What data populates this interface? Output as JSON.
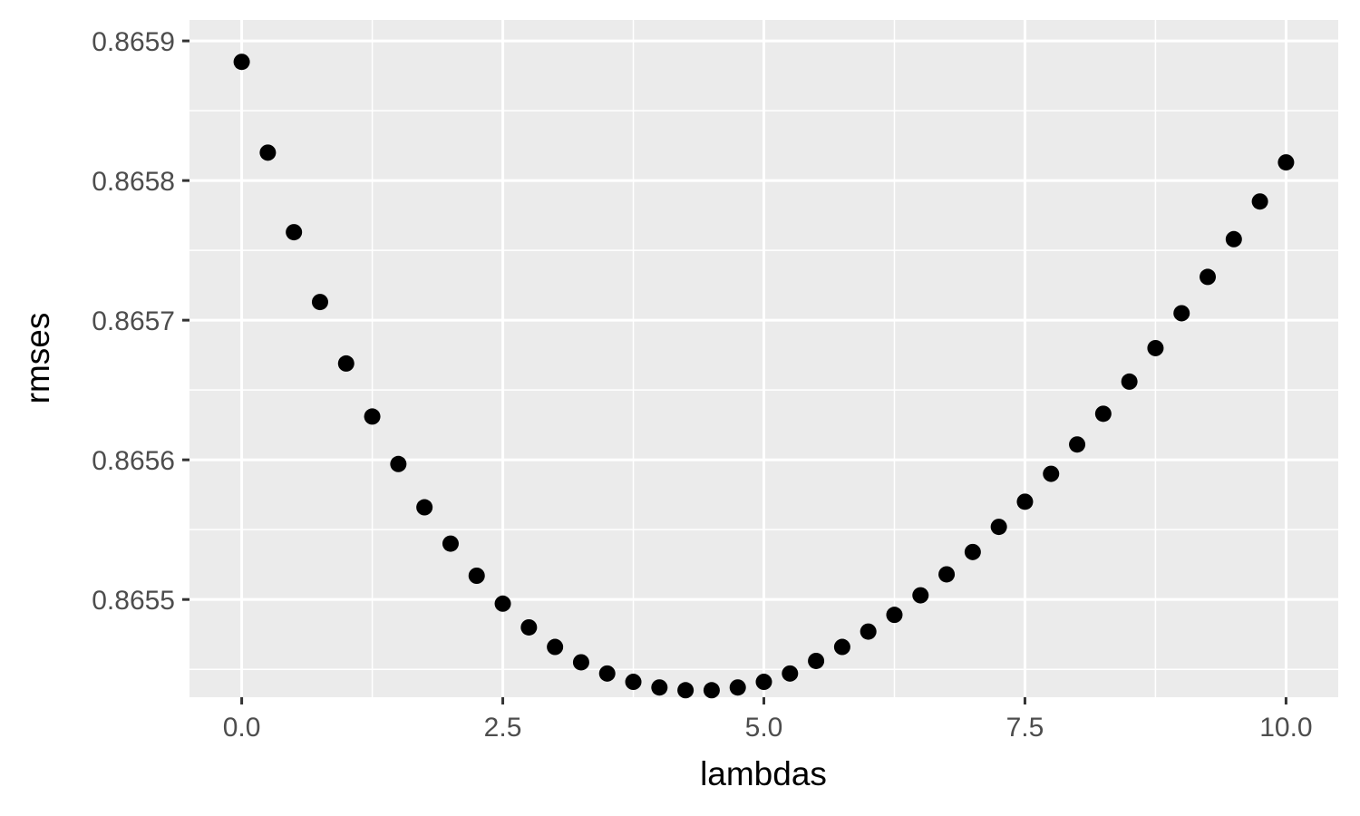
{
  "chart_data": {
    "type": "scatter",
    "xlabel": "lambdas",
    "ylabel": "rmses",
    "xlim": [
      -0.5,
      10.5
    ],
    "ylim": [
      0.86543,
      0.865915
    ],
    "x_ticks": [
      0.0,
      2.5,
      5.0,
      7.5,
      10.0
    ],
    "x_tick_labels": [
      "0.0",
      "2.5",
      "5.0",
      "7.5",
      "10.0"
    ],
    "y_ticks": [
      0.8655,
      0.8656,
      0.8657,
      0.8658,
      0.8659
    ],
    "y_tick_labels": [
      "0.8655",
      "0.8656",
      "0.8657",
      "0.8658",
      "0.8659"
    ],
    "grid": true,
    "point_color": "#000000",
    "panel_color": "#ebebeb",
    "x": [
      0,
      0.25,
      0.5,
      0.75,
      1,
      1.25,
      1.5,
      1.75,
      2,
      2.25,
      2.5,
      2.75,
      3,
      3.25,
      3.5,
      3.75,
      4,
      4.25,
      4.5,
      4.75,
      5,
      5.25,
      5.5,
      5.75,
      6,
      6.25,
      6.5,
      6.75,
      7,
      7.25,
      7.5,
      7.75,
      8,
      8.25,
      8.5,
      8.75,
      9,
      9.25,
      9.5,
      9.75,
      10
    ],
    "y": [
      0.865885,
      0.86582,
      0.865763,
      0.865713,
      0.865669,
      0.865631,
      0.865597,
      0.865566,
      0.86554,
      0.865517,
      0.865497,
      0.86548,
      0.865466,
      0.865455,
      0.865447,
      0.865441,
      0.865437,
      0.865435,
      0.865435,
      0.865437,
      0.865441,
      0.865447,
      0.865456,
      0.865466,
      0.865477,
      0.865489,
      0.865503,
      0.865518,
      0.865534,
      0.865552,
      0.86557,
      0.86559,
      0.865611,
      0.865633,
      0.865656,
      0.86568,
      0.865705,
      0.865731,
      0.865758,
      0.865785,
      0.865813
    ]
  }
}
